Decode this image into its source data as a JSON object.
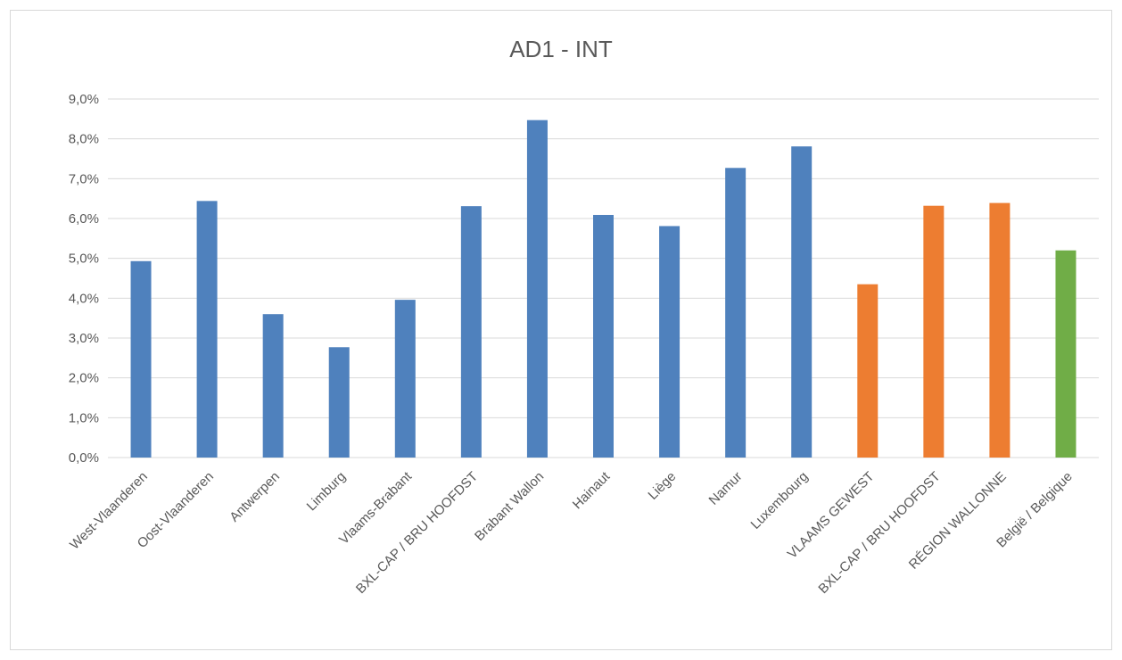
{
  "chart_data": {
    "type": "bar",
    "title": "AD1 - INT",
    "xlabel": "",
    "ylabel": "",
    "ylim": [
      0,
      9
    ],
    "yticks": [
      "0,0%",
      "1,0%",
      "2,0%",
      "3,0%",
      "4,0%",
      "5,0%",
      "6,0%",
      "7,0%",
      "8,0%",
      "9,0%"
    ],
    "grid": true,
    "categories": [
      "West-Vlaanderen",
      "Oost-Vlaanderen",
      "Antwerpen",
      "Limburg",
      "Vlaams-Brabant",
      "BXL-CAP / BRU HOOFDST",
      "Brabant Wallon",
      "Hainaut",
      "Liège",
      "Namur",
      "Luxembourg",
      "VLAAMS GEWEST",
      "BXL-CAP / BRU HOOFDST",
      "RÉGION WALLONNE",
      "België / Belgique"
    ],
    "values": [
      4.93,
      6.44,
      3.6,
      2.77,
      3.96,
      6.31,
      8.47,
      6.09,
      5.81,
      7.27,
      7.81,
      4.35,
      6.32,
      6.39,
      5.2
    ],
    "colors": {
      "province": "#4f81bd",
      "region": "#ed7d31",
      "country": "#70ad47",
      "gridline": "#d9d9d9",
      "text": "#595959"
    },
    "bar_color_groups": [
      "province",
      "province",
      "province",
      "province",
      "province",
      "province",
      "province",
      "province",
      "province",
      "province",
      "province",
      "region",
      "region",
      "region",
      "country"
    ]
  }
}
